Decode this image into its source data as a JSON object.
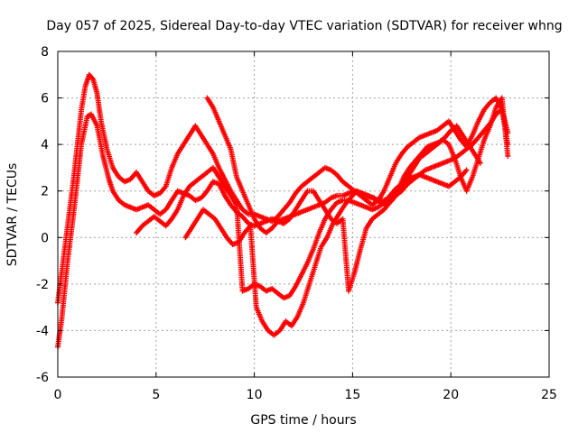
{
  "chart_data": {
    "type": "scatter",
    "title": "Day 057 of 2025, Sidereal Day-to-day VTEC variation (SDTVAR) for receiver whng",
    "xlabel": "GPS time / hours",
    "ylabel": "SDTVAR / TECUs",
    "xlim": [
      0,
      25
    ],
    "ylim": [
      -6,
      8
    ],
    "xticks": [
      0,
      5,
      10,
      15,
      20,
      25
    ],
    "yticks": [
      -6,
      -4,
      -2,
      0,
      2,
      4,
      6,
      8
    ],
    "grid": true,
    "marker": "+",
    "series_color": "#ff0000",
    "series": [
      {
        "x": [
          0.0,
          0.2,
          0.5,
          0.8,
          1.0,
          1.2,
          1.5,
          1.7,
          2.0,
          2.3,
          2.6,
          2.8,
          3.1,
          3.4,
          3.7,
          4.0,
          4.3,
          4.6,
          4.9,
          5.2,
          5.5,
          5.8,
          6.1,
          6.4,
          6.7,
          7.0,
          7.3,
          7.6,
          7.9,
          8.2,
          8.5,
          8.8,
          9.1,
          9.4,
          9.7,
          10.0,
          10.3,
          10.6,
          10.9,
          11.2,
          11.5,
          11.8,
          12.1,
          12.4,
          12.7,
          13.0,
          13.3,
          13.6,
          13.9,
          14.2,
          14.5,
          14.8,
          15.1,
          15.4,
          15.7,
          16.0,
          16.3,
          16.6,
          16.9,
          17.2,
          17.5,
          17.8,
          18.1,
          18.4,
          18.7,
          19.0,
          19.3,
          19.6,
          19.9,
          20.2,
          20.5,
          20.8,
          21.1,
          21.4,
          21.7,
          22.0,
          22.3,
          22.6,
          22.9
        ],
        "values": [
          -4.7,
          -3.5,
          -1.0,
          1.0,
          2.5,
          4.0,
          5.2,
          5.3,
          4.8,
          3.5,
          2.5,
          2.0,
          1.6,
          1.4,
          1.3,
          1.2,
          1.3,
          1.4,
          1.2,
          1.0,
          1.2,
          1.6,
          2.0,
          1.9,
          1.8,
          1.6,
          1.7,
          2.0,
          2.4,
          2.3,
          1.8,
          1.4,
          1.1,
          0.9,
          0.6,
          0.5,
          0.6,
          0.7,
          0.8,
          0.7,
          0.8,
          0.9,
          1.0,
          1.1,
          1.2,
          1.3,
          1.4,
          1.5,
          1.7,
          1.8,
          1.8,
          1.9,
          2.0,
          1.9,
          1.8,
          1.7,
          1.6,
          1.6,
          1.7,
          1.8,
          2.0,
          2.3,
          2.5,
          2.7,
          2.9,
          3.0,
          3.1,
          3.2,
          3.3,
          3.4,
          3.6,
          3.8,
          4.0,
          4.3,
          4.6,
          4.9,
          5.3,
          5.5,
          4.0
        ]
      },
      {
        "x": [
          0.0,
          0.2,
          0.5,
          0.8,
          1.0,
          1.2,
          1.4,
          1.6,
          1.8,
          2.0,
          2.2,
          2.5,
          2.8,
          3.1,
          3.4,
          3.7,
          4.0,
          4.3,
          4.6,
          4.9,
          5.2,
          5.5,
          5.8,
          6.1,
          6.4,
          6.7,
          7.0,
          7.3,
          7.6,
          7.9,
          8.2,
          8.5,
          8.8,
          9.1,
          9.4,
          9.7,
          10.0,
          10.3,
          10.6,
          10.9,
          11.2,
          11.5,
          11.8,
          12.1,
          12.4,
          12.7,
          13.0,
          13.3,
          13.6,
          13.9,
          14.2,
          14.5,
          14.8,
          15.1,
          15.4,
          15.7,
          16.0,
          16.3,
          16.6,
          16.9,
          17.2,
          17.5,
          17.8,
          18.1,
          18.4,
          18.7,
          19.0,
          19.3,
          19.6,
          19.9,
          20.2,
          20.5,
          20.8,
          21.1,
          21.4,
          21.7,
          22.0,
          22.3,
          22.6,
          22.9
        ],
        "values": [
          -2.8,
          -1.5,
          0.5,
          2.5,
          4.0,
          5.5,
          6.5,
          7.0,
          6.8,
          6.2,
          5.0,
          3.8,
          3.0,
          2.6,
          2.4,
          2.5,
          2.8,
          2.4,
          2.0,
          1.8,
          1.9,
          2.2,
          3.0,
          3.6,
          4.0,
          4.4,
          4.8,
          4.4,
          4.0,
          3.6,
          3.0,
          2.5,
          2.0,
          1.6,
          1.2,
          1.0,
          1.0,
          0.9,
          0.8,
          0.7,
          0.9,
          1.2,
          1.5,
          1.9,
          2.2,
          2.4,
          2.6,
          2.8,
          3.0,
          2.9,
          2.7,
          2.4,
          2.2,
          2.0,
          1.8,
          1.6,
          1.4,
          1.6,
          2.0,
          2.6,
          3.2,
          3.6,
          3.9,
          4.1,
          4.3,
          4.4,
          4.5,
          4.6,
          4.8,
          5.0,
          4.6,
          4.2,
          3.9,
          4.4,
          5.0,
          5.5,
          5.8,
          6.0,
          5.5,
          4.5
        ]
      },
      {
        "x": [
          4.0,
          4.3,
          4.6,
          4.9,
          5.2,
          5.5,
          5.8,
          6.1,
          6.4,
          6.7,
          7.0,
          7.3,
          7.6,
          7.9,
          8.2,
          8.5,
          8.8,
          9.1,
          9.4,
          9.7,
          10.0,
          10.3,
          10.6,
          10.9,
          11.2,
          11.5,
          11.8,
          12.1,
          12.4,
          12.7,
          13.0,
          13.3,
          13.6,
          13.9,
          14.2,
          14.5,
          14.8,
          15.1,
          15.4,
          15.7,
          16.0,
          16.3,
          16.6,
          16.9,
          17.2,
          17.5,
          17.8,
          18.1,
          18.4,
          18.7,
          19.0,
          19.3,
          19.6,
          19.9,
          20.2,
          20.5,
          20.8
        ],
        "values": [
          0.2,
          0.5,
          0.7,
          0.9,
          0.7,
          0.5,
          0.8,
          1.2,
          1.8,
          2.2,
          2.4,
          2.6,
          2.8,
          3.0,
          2.6,
          2.2,
          1.8,
          1.4,
          -2.3,
          -2.2,
          -2.0,
          -2.1,
          -2.3,
          -2.2,
          -2.4,
          -2.6,
          -2.5,
          -2.1,
          -1.6,
          -1.1,
          -0.5,
          0.2,
          0.8,
          1.2,
          1.5,
          1.6,
          1.6,
          1.5,
          1.4,
          1.3,
          1.2,
          1.3,
          1.5,
          1.8,
          2.1,
          2.3,
          2.5,
          2.6,
          2.7,
          2.6,
          2.5,
          2.4,
          2.3,
          2.2,
          2.4,
          2.6,
          2.9
        ]
      },
      {
        "x": [
          6.5,
          6.8,
          7.1,
          7.4,
          7.7,
          8.0,
          8.3,
          8.6,
          8.9,
          9.2,
          9.5,
          9.8,
          10.1,
          10.4,
          10.7,
          11.0,
          11.3,
          11.6,
          11.9,
          12.2,
          12.5,
          12.8,
          13.1,
          13.4,
          13.7,
          14.0,
          14.3,
          14.6,
          14.9,
          15.2,
          15.5,
          15.8,
          16.1,
          16.4,
          16.7,
          17.0,
          17.3,
          17.6,
          17.9,
          18.2,
          18.5,
          18.8,
          19.1,
          19.4,
          19.7,
          20.0,
          20.3,
          20.6,
          20.9,
          21.2,
          21.5
        ],
        "values": [
          0.0,
          0.4,
          0.8,
          1.2,
          1.0,
          0.8,
          0.4,
          0.0,
          -0.3,
          -0.2,
          0.2,
          0.5,
          -3.0,
          -3.6,
          -4.0,
          -4.2,
          -4.0,
          -3.6,
          -3.8,
          -3.4,
          -2.8,
          -2.0,
          -1.2,
          -0.4,
          0.0,
          0.6,
          1.0,
          1.4,
          1.7,
          2.0,
          1.9,
          1.8,
          1.7,
          1.5,
          1.4,
          1.6,
          2.0,
          2.6,
          3.0,
          3.3,
          3.6,
          3.9,
          4.0,
          4.1,
          4.3,
          4.6,
          4.8,
          4.4,
          4.0,
          3.6,
          3.2
        ]
      },
      {
        "x": [
          7.6,
          7.9,
          8.2,
          8.5,
          8.8,
          9.1,
          9.4,
          9.7,
          10.0,
          10.3,
          10.6,
          10.9,
          11.2,
          11.5,
          11.8,
          12.1,
          12.4,
          12.7,
          13.0,
          13.3,
          13.6,
          13.9,
          14.2,
          14.5,
          14.8,
          15.1,
          15.4,
          15.7,
          16.0,
          16.3,
          16.6,
          16.9,
          17.2,
          17.5,
          17.8,
          18.1,
          18.4,
          18.7,
          19.0,
          19.3,
          19.6,
          19.9,
          20.2,
          20.5,
          20.8,
          21.1,
          21.4,
          21.7,
          22.0,
          22.3,
          22.6,
          22.9
        ],
        "values": [
          6.0,
          5.6,
          5.0,
          4.4,
          3.8,
          2.6,
          2.0,
          1.4,
          0.8,
          0.4,
          0.2,
          0.4,
          0.7,
          0.6,
          0.8,
          1.2,
          1.6,
          2.0,
          2.0,
          1.6,
          1.2,
          0.8,
          0.6,
          0.8,
          -2.3,
          -1.5,
          -0.5,
          0.4,
          0.8,
          1.0,
          1.2,
          1.5,
          1.8,
          2.2,
          2.6,
          3.0,
          3.4,
          3.6,
          3.8,
          4.0,
          4.2,
          4.0,
          3.4,
          2.6,
          2.0,
          2.6,
          3.4,
          4.2,
          4.8,
          5.6,
          6.0,
          3.5
        ]
      }
    ]
  }
}
